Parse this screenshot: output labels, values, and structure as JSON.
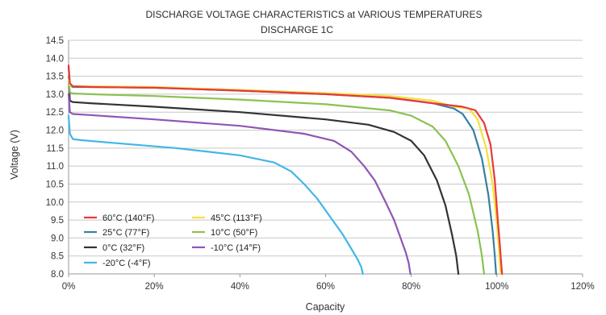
{
  "chart_data": {
    "type": "line",
    "title": "DISCHARGE VOLTAGE CHARACTERISTICS at VARIOUS TEMPERATURES",
    "subtitle": "DISCHARGE 1C",
    "xlabel": "Capacity",
    "ylabel": "Voltage (V)",
    "xlim": [
      0,
      120
    ],
    "ylim": [
      8.0,
      14.5
    ],
    "x_ticks": [
      "0%",
      "20%",
      "40%",
      "60%",
      "80%",
      "100%",
      "120%"
    ],
    "y_ticks": [
      "8.0",
      "8.5",
      "9.0",
      "9.5",
      "10.0",
      "10.5",
      "11.0",
      "11.5",
      "12.0",
      "12.5",
      "13.0",
      "13.5",
      "14.0",
      "14.5"
    ],
    "grid": "horizontal",
    "legend_position": "bottom-left",
    "series": [
      {
        "name": "60°C  (140°F)",
        "color": "#e8383d",
        "x": [
          0,
          0.3,
          1,
          5,
          20,
          40,
          60,
          75,
          85,
          92,
          95,
          97,
          98.5,
          99.5,
          100.2,
          100.7,
          101,
          101.2
        ],
        "y": [
          13.8,
          13.3,
          13.22,
          13.2,
          13.18,
          13.1,
          13.0,
          12.9,
          12.75,
          12.65,
          12.55,
          12.2,
          11.6,
          10.6,
          9.5,
          8.8,
          8.3,
          8.0
        ]
      },
      {
        "name": "45°C  (113°F)",
        "color": "#f2e238",
        "x": [
          0,
          0.3,
          1,
          5,
          20,
          40,
          60,
          75,
          85,
          90,
          93.5,
          95.5,
          97.5,
          99,
          100,
          100.5,
          100.9
        ],
        "y": [
          13.4,
          13.25,
          13.22,
          13.22,
          13.2,
          13.12,
          13.03,
          12.95,
          12.82,
          12.65,
          12.6,
          12.3,
          11.5,
          10.5,
          9.4,
          8.6,
          8.0
        ]
      },
      {
        "name": "25°C  (77°F)",
        "color": "#3b7ea1",
        "x": [
          0,
          0.3,
          1,
          5,
          20,
          40,
          60,
          75,
          85,
          90,
          92,
          94.5,
          96.5,
          98,
          99,
          99.5,
          99.8
        ],
        "y": [
          13.75,
          13.25,
          13.2,
          13.2,
          13.18,
          13.1,
          13.0,
          12.9,
          12.75,
          12.6,
          12.45,
          12.0,
          11.2,
          10.2,
          9.2,
          8.5,
          8.0
        ]
      },
      {
        "name": "10°C  (50°F)",
        "color": "#8cc152",
        "x": [
          0,
          0.3,
          1,
          5,
          20,
          40,
          60,
          75,
          80,
          85,
          88,
          91,
          93.5,
          95.5,
          96.5,
          97
        ],
        "y": [
          13.5,
          13.05,
          13.02,
          13.0,
          12.95,
          12.85,
          12.72,
          12.55,
          12.4,
          12.1,
          11.7,
          11.0,
          10.2,
          9.2,
          8.5,
          8.0
        ]
      },
      {
        "name": "0°C  (32°F)",
        "color": "#333333",
        "x": [
          0,
          0.3,
          1,
          5,
          20,
          40,
          60,
          70,
          76,
          80,
          83,
          86,
          88,
          89.5,
          90.5,
          91
        ],
        "y": [
          13.5,
          12.82,
          12.78,
          12.75,
          12.65,
          12.5,
          12.3,
          12.15,
          11.95,
          11.7,
          11.3,
          10.6,
          9.9,
          9.1,
          8.5,
          8.0
        ]
      },
      {
        "name": "-10°C  (14°F)",
        "color": "#8e56b4",
        "x": [
          0,
          0.3,
          1,
          5,
          20,
          40,
          55,
          62,
          66,
          69,
          71.5,
          74,
          76,
          77.5,
          78.7,
          79.4,
          79.8
        ],
        "y": [
          13.0,
          12.5,
          12.45,
          12.42,
          12.3,
          12.12,
          11.9,
          11.7,
          11.4,
          11.0,
          10.6,
          10.0,
          9.5,
          9.0,
          8.6,
          8.3,
          8.0
        ]
      },
      {
        "name": "-20°C  (-4°F)",
        "color": "#41b6e6",
        "x": [
          0,
          0.3,
          1,
          3,
          10,
          25,
          40,
          48,
          52,
          55,
          58,
          61,
          64,
          66,
          67.5,
          68.3,
          68.7
        ],
        "y": [
          12.4,
          11.9,
          11.75,
          11.72,
          11.65,
          11.5,
          11.3,
          11.1,
          10.85,
          10.5,
          10.1,
          9.6,
          9.1,
          8.7,
          8.4,
          8.2,
          8.0
        ]
      }
    ]
  }
}
